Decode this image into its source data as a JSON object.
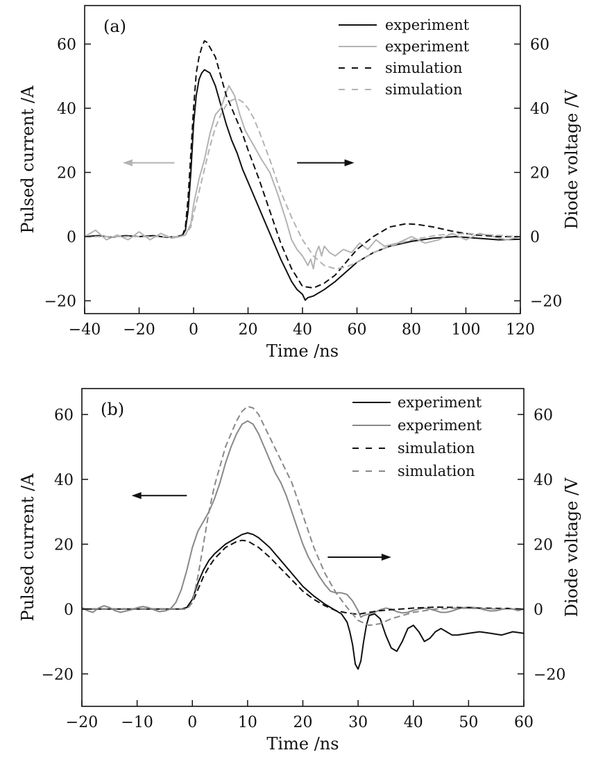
{
  "chart_data": [
    {
      "type": "line",
      "panel_label": "(a)",
      "xlabel": "Time /ns",
      "ylabel_left": "Pulsed current /A",
      "ylabel_right": "Diode voltage /V",
      "xlim": [
        -40,
        120
      ],
      "ylim": [
        -24,
        72
      ],
      "xticks": [
        -40,
        -20,
        0,
        20,
        40,
        60,
        80,
        100,
        120
      ],
      "xtick_labels": [
        "−40",
        "−20",
        "0",
        "20",
        "40",
        "60",
        "80",
        "100",
        "120"
      ],
      "yticks": [
        -20,
        0,
        20,
        40,
        60
      ],
      "ytick_labels": [
        "−20",
        "0",
        "20",
        "40",
        "60"
      ],
      "legend_position": "top-right",
      "arrows": [
        {
          "direction": "left",
          "color": "#b3b3b3",
          "from": [
            -7,
            23
          ],
          "to": [
            -26,
            23
          ]
        },
        {
          "direction": "right",
          "color": "#111111",
          "from": [
            38,
            23
          ],
          "to": [
            59,
            23
          ]
        }
      ],
      "series": [
        {
          "name": "experiment",
          "color": "#111111",
          "dash": "solid",
          "x": [
            -40,
            -35,
            -30,
            -25,
            -20,
            -15,
            -10,
            -6,
            -4,
            -3,
            -2,
            -1,
            0,
            1,
            2,
            3,
            4,
            5,
            6,
            8,
            10,
            12,
            14,
            16,
            18,
            20,
            24,
            28,
            32,
            36,
            38,
            40,
            41,
            42,
            44,
            48,
            52,
            56,
            60,
            66,
            72,
            80,
            88,
            96,
            104,
            112,
            120
          ],
          "y": [
            0,
            0.3,
            -0.2,
            0.3,
            0,
            0.3,
            -0.2,
            0,
            0.5,
            2,
            8,
            20,
            35,
            44,
            49,
            51,
            52,
            51.5,
            51,
            47,
            41,
            35,
            30,
            26,
            21,
            17,
            9,
            1,
            -7,
            -14,
            -16.5,
            -18,
            -19.8,
            -19,
            -18.5,
            -16.5,
            -14,
            -11,
            -8,
            -5,
            -3,
            -1.5,
            -0.5,
            0,
            -0.5,
            -1,
            -0.8
          ]
        },
        {
          "name": "experiment",
          "color": "#b3b3b3",
          "dash": "solid",
          "x": [
            -40,
            -36,
            -32,
            -28,
            -24,
            -20,
            -16,
            -12,
            -8,
            -5,
            -3,
            -1,
            0,
            2,
            4,
            6,
            8,
            10,
            12,
            13,
            15,
            17,
            19,
            21,
            23,
            25,
            28,
            31,
            34,
            36,
            38,
            40,
            42,
            43,
            44,
            45,
            46,
            47,
            48,
            50,
            52,
            55,
            58,
            61,
            64,
            67,
            70,
            75,
            80,
            85,
            90,
            95,
            100,
            105,
            110,
            115,
            120
          ],
          "y": [
            0,
            2,
            -1,
            0.5,
            -1,
            1.5,
            -1,
            1,
            -0.5,
            0,
            0.5,
            4,
            10,
            18,
            24,
            32,
            38,
            40,
            45,
            47,
            44,
            38,
            33,
            30,
            27,
            24,
            20,
            13,
            5,
            -1,
            -4,
            -6,
            -9,
            -7,
            -10,
            -5,
            -3,
            -6,
            -3,
            -5,
            -6,
            -4,
            -5,
            -2,
            -4,
            -1,
            -3,
            -2,
            0,
            -2,
            -1,
            1,
            -1,
            1,
            0,
            -1,
            0
          ]
        },
        {
          "name": "simulation",
          "color": "#111111",
          "dash": "dashed",
          "x": [
            -40,
            -20,
            -6,
            -4,
            -3,
            -2,
            -1,
            0,
            1,
            2,
            3,
            4,
            5,
            6,
            8,
            10,
            12,
            14,
            16,
            18,
            20,
            24,
            28,
            32,
            36,
            40,
            44,
            48,
            52,
            56,
            60,
            66,
            72,
            78,
            82,
            88,
            96,
            104,
            112,
            120
          ],
          "y": [
            0,
            0,
            0,
            0.5,
            3,
            12,
            26,
            40,
            51,
            56,
            59,
            61,
            60.5,
            59,
            56,
            50,
            44,
            40,
            36,
            32,
            27,
            18,
            8,
            -2,
            -10,
            -15.5,
            -16,
            -14.5,
            -12,
            -8,
            -4,
            0,
            3,
            4,
            3.8,
            3,
            1.5,
            0.5,
            0,
            0
          ]
        },
        {
          "name": "simulation",
          "color": "#b3b3b3",
          "dash": "dashed",
          "x": [
            -40,
            -20,
            -5,
            -3,
            -1,
            0,
            2,
            4,
            6,
            8,
            10,
            12,
            14,
            16,
            18,
            20,
            22,
            24,
            28,
            32,
            36,
            40,
            44,
            48,
            52,
            56,
            60,
            66,
            72,
            80,
            90,
            100,
            110,
            120
          ],
          "y": [
            0,
            0,
            0,
            0.5,
            3,
            7,
            14,
            21,
            28,
            34,
            38,
            41,
            42.5,
            43,
            42,
            40,
            37,
            33,
            24,
            14,
            6,
            -1,
            -6,
            -9,
            -10,
            -9.5,
            -8,
            -5,
            -3,
            -1,
            0.5,
            1,
            0.5,
            0
          ]
        }
      ]
    },
    {
      "type": "line",
      "panel_label": "(b)",
      "xlabel": "Time /ns",
      "ylabel_left": "Pulsed current /A",
      "ylabel_right": "Diode voltage /V",
      "xlim": [
        -20,
        60
      ],
      "ylim": [
        -30,
        68
      ],
      "xticks": [
        -20,
        -10,
        0,
        10,
        20,
        30,
        40,
        50,
        60
      ],
      "xtick_labels": [
        "−20",
        "−10",
        "0",
        "10",
        "20",
        "30",
        "40",
        "50",
        "60"
      ],
      "yticks": [
        -20,
        0,
        20,
        40,
        60
      ],
      "ytick_labels": [
        "−20",
        "0",
        "20",
        "40",
        "60"
      ],
      "legend_position": "top-right",
      "arrows": [
        {
          "direction": "left",
          "color": "#111111",
          "from": [
            -1,
            35
          ],
          "to": [
            -11,
            35
          ]
        },
        {
          "direction": "right",
          "color": "#111111",
          "from": [
            24.5,
            16
          ],
          "to": [
            36,
            16
          ]
        }
      ],
      "series": [
        {
          "name": "experiment",
          "color": "#111111",
          "dash": "solid",
          "x": [
            -20,
            -15,
            -10,
            -5,
            -2,
            -1,
            0,
            1,
            2,
            3,
            4,
            6,
            8,
            9,
            10,
            11,
            12,
            14,
            16,
            18,
            20,
            22,
            24,
            26,
            27,
            28,
            28.5,
            29,
            29.5,
            30,
            30.5,
            31,
            31.5,
            32,
            33,
            34,
            35,
            36,
            37,
            38,
            39,
            40,
            41,
            42,
            43,
            44,
            45,
            46,
            47,
            48,
            50,
            52,
            54,
            56,
            58,
            60
          ],
          "y": [
            0,
            0,
            0,
            0,
            0,
            0.5,
            3,
            8,
            12,
            15,
            17,
            20,
            22,
            23,
            23.5,
            23,
            22,
            19,
            15,
            11,
            7,
            4,
            1.5,
            -0.5,
            -1.5,
            -4,
            -7,
            -11,
            -17,
            -18.5,
            -16,
            -10,
            -5,
            -2,
            -1.5,
            -3,
            -8,
            -12,
            -13,
            -10,
            -6,
            -5,
            -7,
            -10,
            -9,
            -7,
            -6,
            -7,
            -8,
            -8,
            -7.5,
            -7,
            -7.5,
            -8,
            -7,
            -7.5
          ]
        },
        {
          "name": "experiment",
          "color": "#888888",
          "dash": "solid",
          "x": [
            -20,
            -19,
            -18,
            -17,
            -16,
            -15,
            -14,
            -13,
            -12,
            -11,
            -10,
            -9,
            -8,
            -7,
            -6,
            -5,
            -4,
            -3,
            -2,
            -1,
            0,
            1,
            2,
            3,
            4,
            5,
            6,
            7,
            8,
            9,
            10,
            11,
            12,
            13,
            14,
            15,
            16,
            17,
            18,
            19,
            20,
            21,
            22,
            23,
            24,
            25,
            26,
            27,
            28,
            29,
            30,
            30.5,
            31,
            32,
            33,
            34,
            35,
            36,
            37,
            38,
            39,
            40,
            41,
            42,
            43,
            44,
            45,
            46,
            47,
            48,
            49,
            50,
            51,
            52,
            53,
            54,
            55,
            56,
            57,
            58,
            59,
            60
          ],
          "y": [
            0.5,
            -0.5,
            -1,
            0.3,
            1,
            0.5,
            -0.5,
            -1,
            -0.6,
            -0.2,
            0.4,
            0.8,
            0.5,
            -0.2,
            -0.8,
            -0.6,
            0,
            2,
            6,
            12,
            19,
            24,
            27,
            30,
            34,
            39,
            45,
            50,
            54,
            57,
            58,
            57,
            54,
            50,
            46,
            42,
            39,
            35,
            30,
            25,
            20,
            16,
            13,
            10,
            7.5,
            5.5,
            5,
            5,
            4.5,
            2.5,
            -0.5,
            -2.5,
            -2,
            -1.5,
            -1,
            -0.2,
            0.3,
            0,
            -0.8,
            -1.2,
            -1,
            -0.4,
            0,
            0.3,
            0,
            -0.5,
            -1,
            -1,
            -0.6,
            0,
            0.4,
            0.6,
            0.5,
            0.2,
            -0.3,
            -0.6,
            -0.5,
            -0.1,
            0.3,
            0,
            -0.5,
            0
          ]
        },
        {
          "name": "simulation",
          "color": "#111111",
          "dash": "dashed",
          "x": [
            -20,
            -10,
            -1,
            0,
            1,
            2,
            3,
            4,
            6,
            8,
            9,
            10,
            12,
            14,
            16,
            18,
            20,
            22,
            24,
            26,
            28,
            30,
            31,
            32,
            34,
            36,
            40,
            44,
            48,
            52,
            56,
            60
          ],
          "y": [
            0,
            0,
            0,
            2,
            6,
            10,
            13,
            15.5,
            19,
            20.8,
            21.2,
            21,
            19,
            16,
            12.5,
            9,
            5.5,
            3,
            1,
            -0.5,
            -1.2,
            -1.6,
            -1.3,
            -1,
            -0.5,
            -0.2,
            0.3,
            0.6,
            0.5,
            0.3,
            0.2,
            0
          ]
        },
        {
          "name": "simulation",
          "color": "#888888",
          "dash": "dashed",
          "x": [
            -20,
            -10,
            -1,
            0,
            1,
            2,
            3,
            4,
            6,
            8,
            9,
            10,
            11,
            12,
            14,
            16,
            18,
            20,
            22,
            24,
            26,
            28,
            30,
            32,
            33,
            34,
            36,
            38,
            40,
            44,
            48,
            52,
            56,
            60
          ],
          "y": [
            0,
            0,
            0,
            2,
            10,
            20,
            30,
            38,
            50,
            58,
            61,
            62.5,
            62,
            60,
            53,
            46,
            39,
            29,
            19,
            11,
            5,
            0.5,
            -3.5,
            -5,
            -4.8,
            -4.5,
            -3,
            -2,
            -1,
            0,
            0.3,
            0.2,
            0,
            0
          ]
        }
      ]
    }
  ]
}
